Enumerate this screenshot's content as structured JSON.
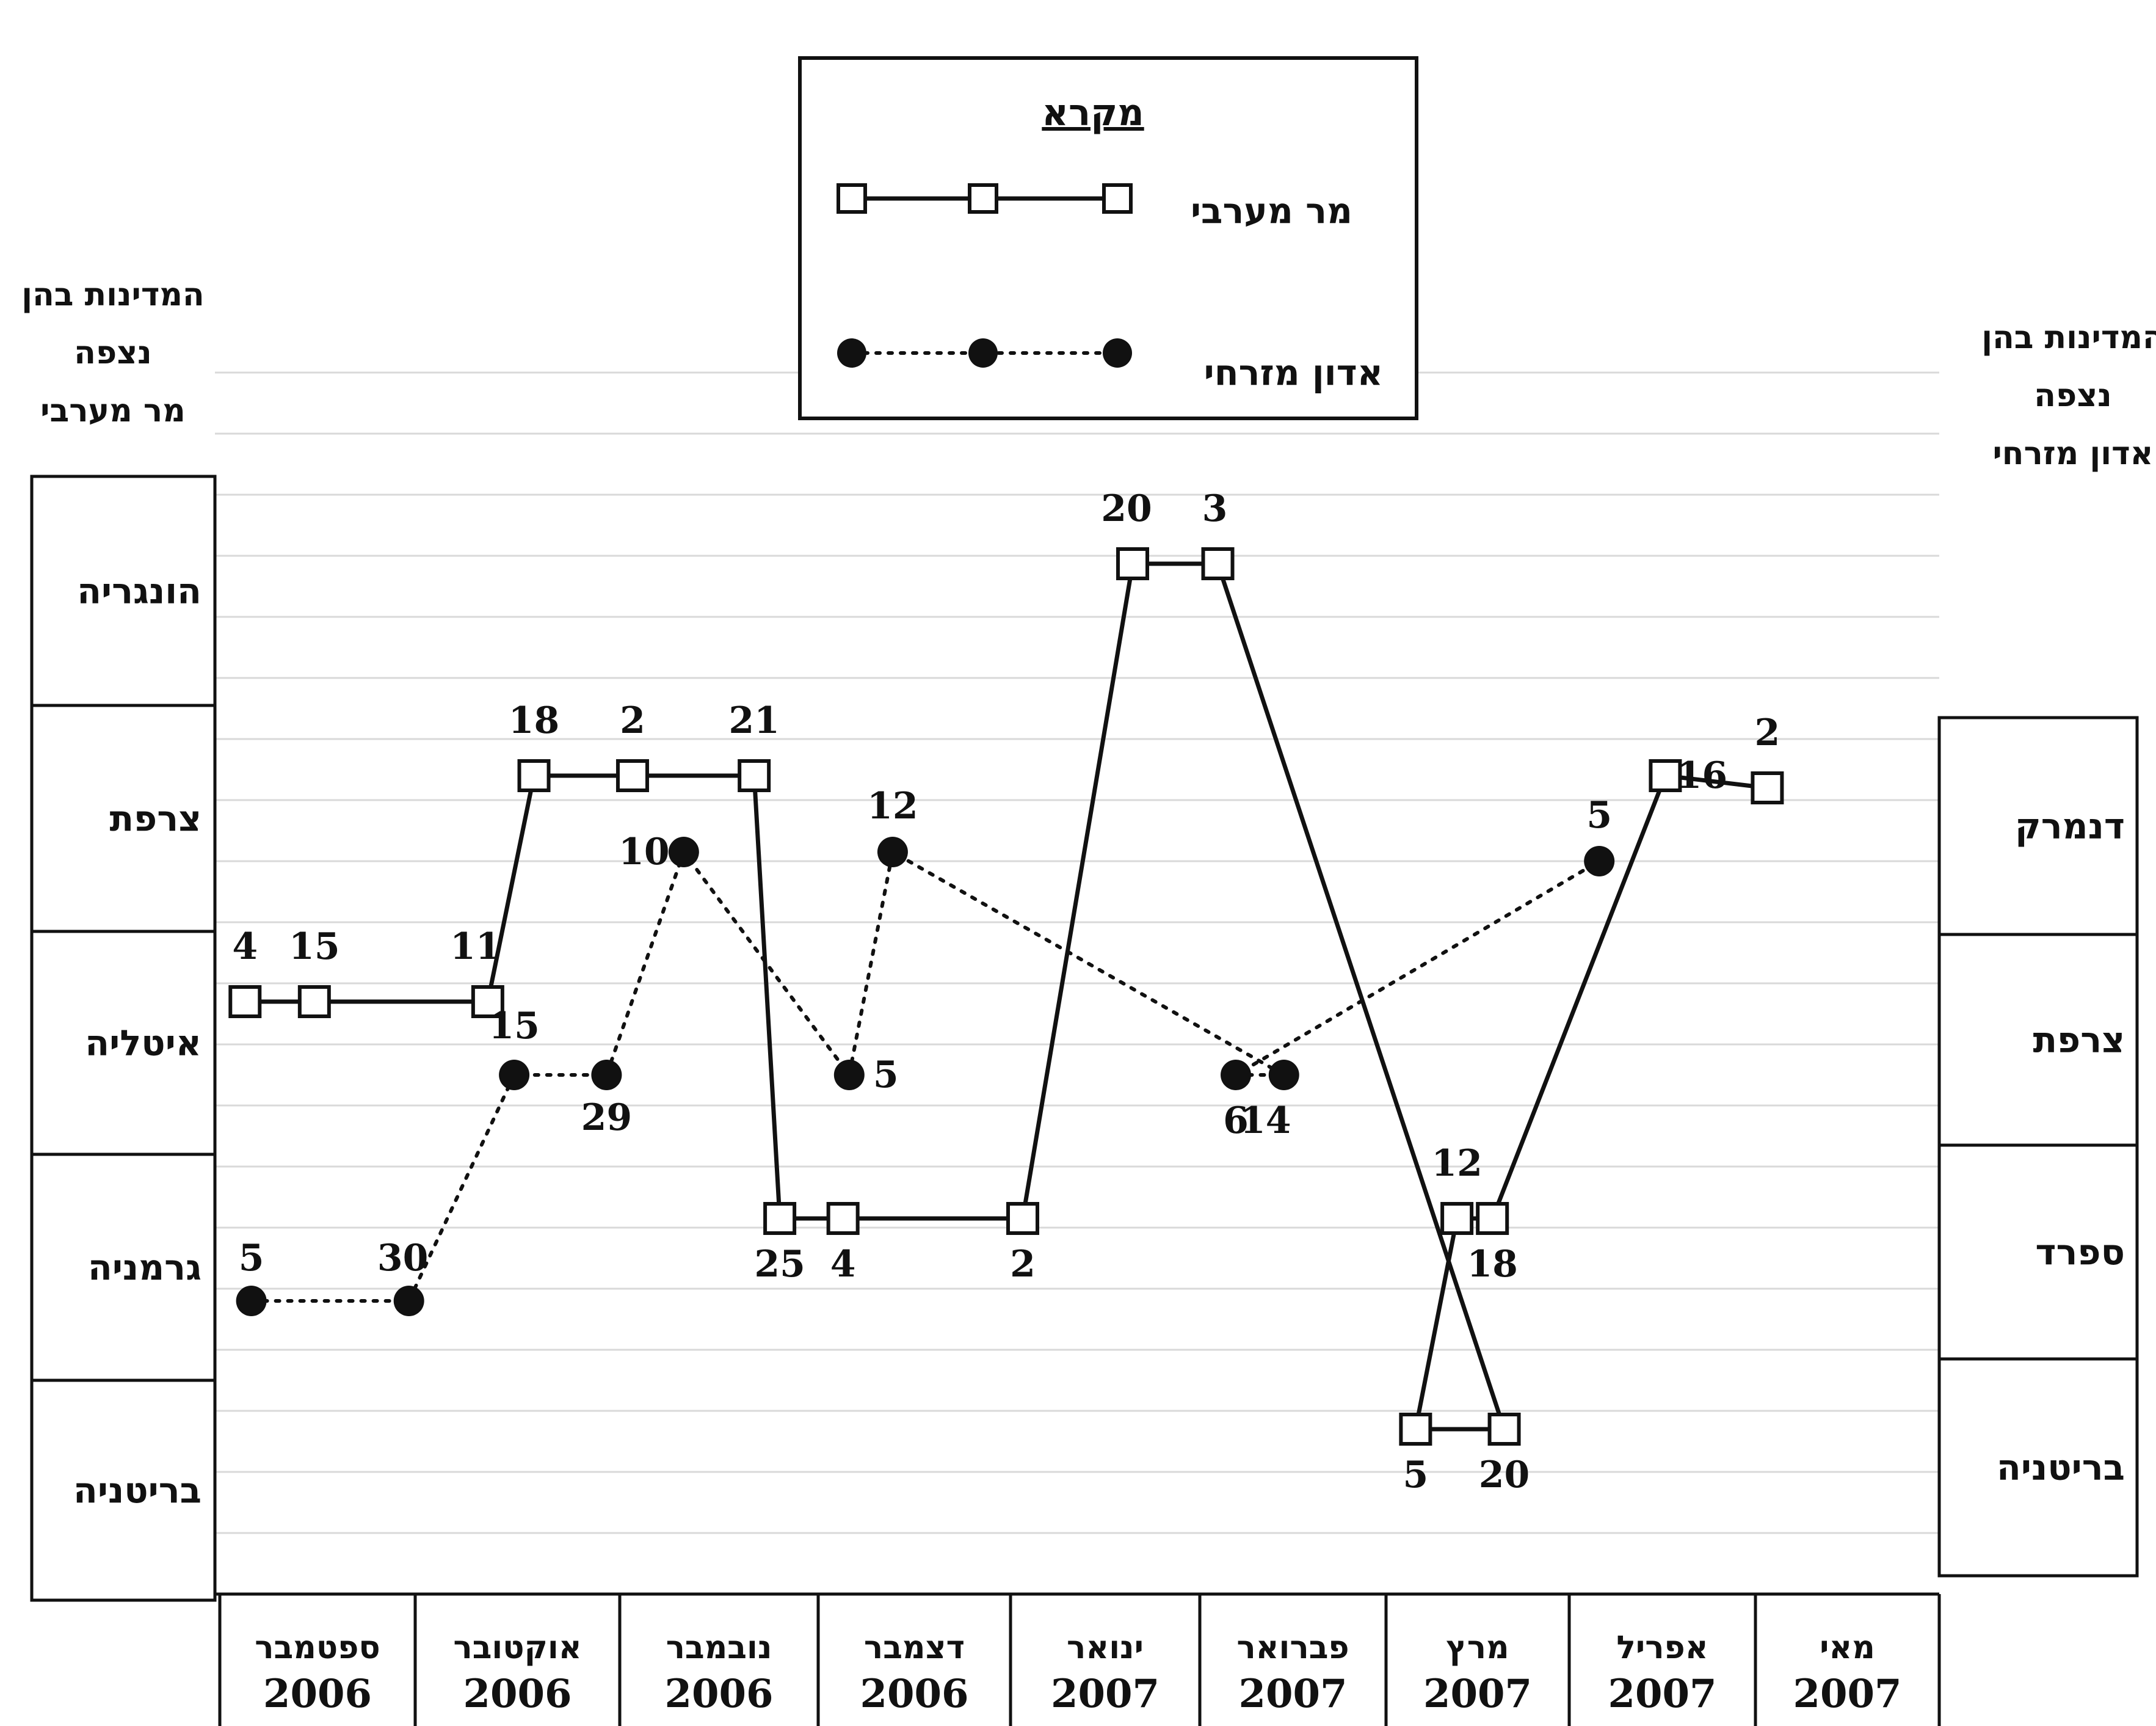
{
  "chart_data": {
    "type": "line",
    "legend": {
      "title": "מקרא",
      "placement": "top-center"
    },
    "left_axis": {
      "title_lines": [
        "המדינות בהן",
        "נצפה",
        "מר מערבי"
      ],
      "categories_top_to_bottom": [
        "הונגריה",
        "צרפת",
        "איטליה",
        "גרמניה",
        "בריטניה"
      ]
    },
    "right_axis": {
      "title_lines": [
        "המדינות בהן",
        "נצפה",
        "אדון מזרחי"
      ],
      "categories_top_to_bottom": [
        "דנמרק",
        "צרפת",
        "ספרד",
        "בריטניה"
      ]
    },
    "x_axis": {
      "direction": "right-to-left",
      "months": [
        {
          "month": "ספטמבר",
          "year": "2006"
        },
        {
          "month": "אוקטובר",
          "year": "2006"
        },
        {
          "month": "נובמבר",
          "year": "2006"
        },
        {
          "month": "דצמבר",
          "year": "2006"
        },
        {
          "month": "ינואר",
          "year": "2007"
        },
        {
          "month": "פברואר",
          "year": "2007"
        },
        {
          "month": "מרץ",
          "year": "2007"
        },
        {
          "month": "אפריל",
          "year": "2007"
        },
        {
          "month": "מאי",
          "year": "2007"
        }
      ]
    },
    "series": [
      {
        "name": "מר מערבי",
        "axis": "left",
        "marker": "square",
        "line": "solid",
        "points": [
          {
            "month": "ספטמבר 2006",
            "day": 4,
            "country": "איטליה",
            "label": "4"
          },
          {
            "month": "ספטמבר 2006",
            "day": 15,
            "country": "איטליה",
            "label": "15"
          },
          {
            "month": "אוקטובר 2006",
            "day": 11,
            "country": "איטליה",
            "label": "11"
          },
          {
            "month": "אוקטובר 2006",
            "day": 18,
            "country": "צרפת",
            "label": "18"
          },
          {
            "month": "נובמבר 2006",
            "day": 2,
            "country": "צרפת",
            "label": "2"
          },
          {
            "month": "נובמבר 2006",
            "day": 21,
            "country": "צרפת",
            "label": "21"
          },
          {
            "month": "נובמבר 2006",
            "day": 25,
            "country": "גרמניה",
            "label": "25"
          },
          {
            "month": "דצמבר 2006",
            "day": 4,
            "country": "גרמניה",
            "label": "4"
          },
          {
            "month": "ינואר 2007",
            "day": 2,
            "country": "גרמניה",
            "label": "2"
          },
          {
            "month": "ינואר 2007",
            "day": 20,
            "country": "הונגריה",
            "label": "20"
          },
          {
            "month": "פברואר 2007",
            "day": 3,
            "country": "הונגריה",
            "label": "3"
          },
          {
            "month": "מרץ 2007",
            "day": 20,
            "country": "בריטניה",
            "label": "20"
          },
          {
            "month": "מרץ 2007",
            "day": 5,
            "country": "בריטניה",
            "label": "5"
          },
          {
            "month": "מרץ 2007",
            "day": 12,
            "country": "ספרד",
            "label": "12"
          },
          {
            "month": "מרץ 2007",
            "day": 18,
            "country": "ספרד",
            "label": "18"
          },
          {
            "month": "אפריל 2007",
            "day": 16,
            "country": "צרפת",
            "label": "16"
          },
          {
            "month": "מאי 2007",
            "day": 2,
            "country": "דנמרק",
            "label": "2"
          }
        ]
      },
      {
        "name": "אדון מזרחי",
        "axis": "left-and-right",
        "marker": "filled-circle",
        "line": "dotted",
        "points": [
          {
            "month": "ספטמבר 2006",
            "day": 5,
            "country": "גרמניה",
            "label": "5"
          },
          {
            "month": "ספטמבר 2006",
            "day": 30,
            "country": "גרמניה",
            "label": "30"
          },
          {
            "month": "אוקטובר 2006",
            "day": 15,
            "country": "איטליה",
            "label": "15"
          },
          {
            "month": "אוקטובר 2006",
            "day": 29,
            "country": "איטליה",
            "label": "29"
          },
          {
            "month": "נובמבר 2006",
            "day": 10,
            "country": "צרפת",
            "label": "10"
          },
          {
            "month": "דצמבר 2006",
            "day": 5,
            "country": "איטליה",
            "label": "5"
          },
          {
            "month": "דצמבר 2006",
            "day": 12,
            "country": "צרפת",
            "label": "12"
          },
          {
            "month": "פברואר 2007",
            "day": 14,
            "country": "צרפת (ימין)",
            "label": "14"
          },
          {
            "month": "פברואר 2007",
            "day": 6,
            "country": "צרפת (ימין)",
            "label": "6"
          },
          {
            "month": "אפריל 2007",
            "day": 5,
            "country": "דנמרק",
            "label": "5"
          }
        ]
      }
    ]
  }
}
